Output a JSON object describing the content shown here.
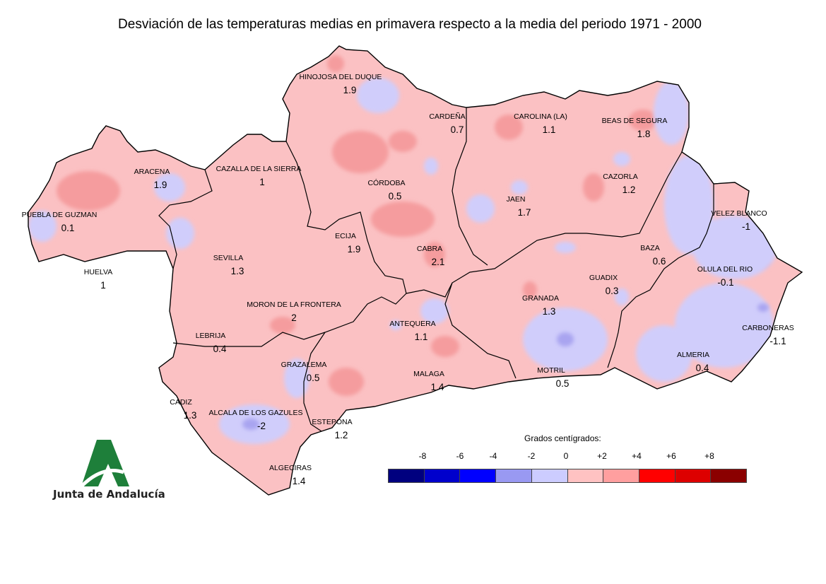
{
  "title": "Desviación de las temperaturas medias en primavera respecto a la media del periodo 1971 - 2000",
  "legend": {
    "title": "Grados centígrados:",
    "ticks": [
      "-8",
      "-6",
      "-4",
      "-2",
      "0",
      "+2",
      "+4",
      "+6",
      "+8"
    ],
    "colors": [
      "#00007f",
      "#0000cc",
      "#0000ff",
      "#9999f2",
      "#ccccff",
      "#ffc2c2",
      "#ff9f9f",
      "#ff0000",
      "#dd0000",
      "#8b0000"
    ]
  },
  "logo": {
    "text": "Junta de Andalucía"
  },
  "stations": [
    {
      "name": "HINOJOSA DEL DUQUE",
      "value": "1.9"
    },
    {
      "name": "CARDEÑA",
      "value": "0.7"
    },
    {
      "name": "CAROLINA (LA)",
      "value": "1.1"
    },
    {
      "name": "BEAS DE SEGURA",
      "value": "1.8"
    },
    {
      "name": "ARACENA",
      "value": "1.9"
    },
    {
      "name": "CAZALLA DE LA SIERRA",
      "value": "1"
    },
    {
      "name": "CÓRDOBA",
      "value": "0.5"
    },
    {
      "name": "CAZORLA",
      "value": "1.2"
    },
    {
      "name": "JAEN",
      "value": "1.7"
    },
    {
      "name": "PUEBLA DE GUZMAN",
      "value": "0.1"
    },
    {
      "name": "VELEZ BLANCO",
      "value": "-1"
    },
    {
      "name": "ECIJA",
      "value": "1.9"
    },
    {
      "name": "SEVILLA",
      "value": "1.3"
    },
    {
      "name": "CABRA",
      "value": "2.1"
    },
    {
      "name": "BAZA",
      "value": "0.6"
    },
    {
      "name": "HUELVA",
      "value": "1"
    },
    {
      "name": "GUADIX",
      "value": "0.3"
    },
    {
      "name": "OLULA DEL RIO",
      "value": "-0.1"
    },
    {
      "name": "GRANADA",
      "value": "1.3"
    },
    {
      "name": "MORON DE LA FRONTERA",
      "value": "2"
    },
    {
      "name": "ANTEQUERA",
      "value": "1.1"
    },
    {
      "name": "CARBONERAS",
      "value": "-1.1"
    },
    {
      "name": "LEBRIJA",
      "value": "0.4"
    },
    {
      "name": "GRAZALEMA",
      "value": "0.5"
    },
    {
      "name": "ALMERIA",
      "value": "0.4"
    },
    {
      "name": "MOTRIL",
      "value": "0.5"
    },
    {
      "name": "MALAGA",
      "value": "1.4"
    },
    {
      "name": "CADIZ",
      "value": "1.3"
    },
    {
      "name": "ALCALA DE LOS GAZULES",
      "value": "-2"
    },
    {
      "name": "ESTEPONA",
      "value": "1.2"
    },
    {
      "name": "ALGECIRAS",
      "value": "1.4"
    }
  ]
}
